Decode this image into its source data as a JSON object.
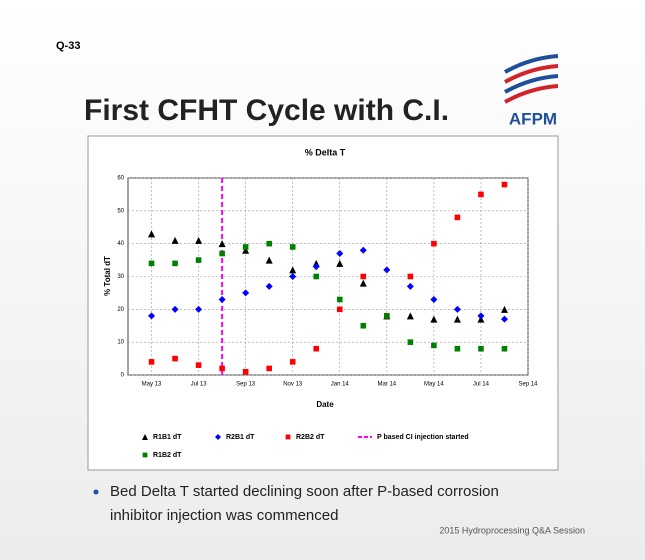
{
  "slide": {
    "label": "Q-33",
    "title": "First CFHT Cycle with C.I.",
    "logo": "AFPM",
    "bullet": [
      "Bed Delta T started declining soon after P-based corrosion",
      "inhibitor injection was commenced"
    ],
    "footer": "2015 Hydroprocessing Q&A Session"
  },
  "chart_data": {
    "type": "scatter",
    "title": "% Delta T",
    "x_label": "Date",
    "y_label": "% Total dT",
    "x": [
      "2013-05",
      "2013-06",
      "2013-07",
      "2013-08",
      "2013-09",
      "2013-10",
      "2013-11",
      "2013-12",
      "2014-01",
      "2014-02",
      "2014-03",
      "2014-04",
      "2014-05",
      "2014-06",
      "2014-07",
      "2014-08"
    ],
    "series": [
      {
        "name": "R1B1 dT",
        "color": "#000000",
        "marker": "triangle",
        "values": [
          43,
          41,
          41,
          40,
          38,
          35,
          32,
          34,
          34,
          28,
          18,
          18,
          17,
          17,
          17,
          20
        ]
      },
      {
        "name": "R2B1 dT",
        "color": "#0000ff",
        "marker": "diamond",
        "values": [
          18,
          20,
          20,
          23,
          25,
          27,
          30,
          33,
          37,
          38,
          32,
          27,
          23,
          20,
          18,
          17
        ]
      },
      {
        "name": "R2B2 dT",
        "color": "#ff0000",
        "marker": "square",
        "values": [
          4,
          5,
          3,
          2,
          1,
          2,
          4,
          8,
          20,
          30,
          18,
          30,
          40,
          48,
          55,
          58
        ]
      },
      {
        "name": "R1B2 dT",
        "color": "#008000",
        "marker": "square",
        "values": [
          34,
          34,
          35,
          37,
          39,
          40,
          39,
          30,
          23,
          15,
          18,
          10,
          9,
          8,
          8,
          8
        ]
      }
    ],
    "annotation": {
      "name": "P based CI injection started",
      "x": "2013-08",
      "color": "#ff00ff"
    },
    "xlim": [
      "2013-04",
      "2014-09"
    ],
    "xticks": [
      {
        "value": "2013-05",
        "label": "May 13"
      },
      {
        "value": "2013-07",
        "label": "Jul 13"
      },
      {
        "value": "2013-09",
        "label": "Sep 13"
      },
      {
        "value": "2013-11",
        "label": "Nov 13"
      },
      {
        "value": "2014-01",
        "label": "Jan 14"
      },
      {
        "value": "2014-03",
        "label": "Mar 14"
      },
      {
        "value": "2014-05",
        "label": "May 14"
      },
      {
        "value": "2014-07",
        "label": "Jul 14"
      },
      {
        "value": "2014-09",
        "label": "Sep 14"
      }
    ],
    "ylim": [
      0,
      60
    ],
    "yticks": [
      0,
      10,
      20,
      30,
      40,
      50,
      60
    ],
    "grid": true
  }
}
